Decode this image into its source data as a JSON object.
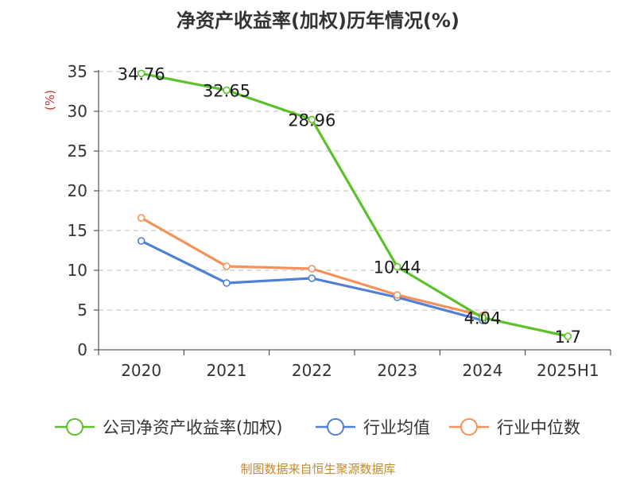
{
  "chart_data": {
    "type": "line",
    "title": "净资产收益率(加权)历年情况(%)",
    "ylabel": "(%)",
    "xlabel": "",
    "categories": [
      "2020",
      "2021",
      "2022",
      "2023",
      "2024",
      "2025H1"
    ],
    "ylim": [
      0,
      35
    ],
    "yticks": [
      0,
      5,
      10,
      15,
      20,
      25,
      30,
      35
    ],
    "grid": "horizontal-dashed",
    "legend_position": "bottom",
    "series": [
      {
        "name": "公司净资产收益率(加权)",
        "color": "#5cc12a",
        "values": [
          34.76,
          32.65,
          28.96,
          10.44,
          4.04,
          1.7
        ],
        "data_labels": [
          "34.76",
          "32.65",
          "28.96",
          "10.44",
          "4.04",
          "1.7"
        ]
      },
      {
        "name": "行业均值",
        "color": "#4f7fd6",
        "values": [
          13.7,
          8.4,
          9.0,
          6.6,
          3.7,
          null
        ]
      },
      {
        "name": "行业中位数",
        "color": "#f4915a",
        "values": [
          16.6,
          10.5,
          10.2,
          6.9,
          4.3,
          null
        ]
      }
    ],
    "source": "制图数据来自恒生聚源数据库"
  },
  "colors": {
    "title": "#333333",
    "axis": "#333333",
    "ylabel": "#c0392b",
    "grid": "#bbbbbb",
    "source": "#c08a2d"
  }
}
